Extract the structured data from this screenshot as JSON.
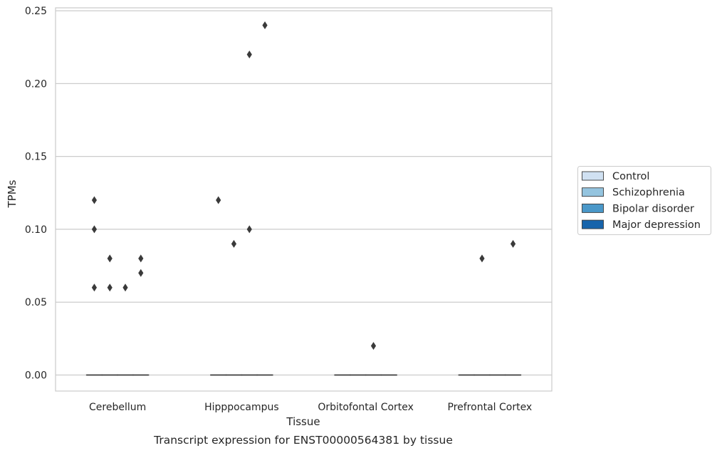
{
  "chart_data": {
    "type": "box",
    "title": "",
    "caption": "Transcript expression for ENST00000564381 by tissue",
    "xlabel": "Tissue",
    "ylabel": "TPMs",
    "ylim": [
      -0.011,
      0.252
    ],
    "yticks": [
      0.0,
      0.05,
      0.1,
      0.15,
      0.2,
      0.25
    ],
    "ytick_labels": [
      "0.00",
      "0.05",
      "0.10",
      "0.15",
      "0.20",
      "0.25"
    ],
    "grid": "horizontal",
    "legend_position": "right",
    "categories": [
      "Cerebellum",
      "Hipppocampus",
      "Orbitofontal Cortex",
      "Prefrontal Cortex"
    ],
    "series": [
      {
        "name": "Control",
        "color": "#d0e1f2",
        "boxes": [
          {
            "category": "Cerebellum",
            "q1": 0,
            "median": 0,
            "q3": 0,
            "whisker_low": 0,
            "whisker_high": 0,
            "outliers": [
              0.06,
              0.1,
              0.12
            ]
          },
          {
            "category": "Hipppocampus",
            "q1": 0,
            "median": 0,
            "q3": 0,
            "whisker_low": 0,
            "whisker_high": 0,
            "outliers": [
              0.12
            ]
          },
          {
            "category": "Orbitofontal Cortex",
            "q1": 0,
            "median": 0,
            "q3": 0,
            "whisker_low": 0,
            "whisker_high": 0,
            "outliers": []
          },
          {
            "category": "Prefrontal Cortex",
            "q1": 0,
            "median": 0,
            "q3": 0,
            "whisker_low": 0,
            "whisker_high": 0,
            "outliers": []
          }
        ]
      },
      {
        "name": "Schizophrenia",
        "color": "#94c4df",
        "boxes": [
          {
            "category": "Cerebellum",
            "q1": 0,
            "median": 0,
            "q3": 0,
            "whisker_low": 0,
            "whisker_high": 0,
            "outliers": [
              0.06,
              0.08
            ]
          },
          {
            "category": "Hipppocampus",
            "q1": 0,
            "median": 0,
            "q3": 0,
            "whisker_low": 0,
            "whisker_high": 0,
            "outliers": [
              0.09
            ]
          },
          {
            "category": "Orbitofontal Cortex",
            "q1": 0,
            "median": 0,
            "q3": 0,
            "whisker_low": 0,
            "whisker_high": 0,
            "outliers": []
          },
          {
            "category": "Prefrontal Cortex",
            "q1": 0,
            "median": 0,
            "q3": 0,
            "whisker_low": 0,
            "whisker_high": 0,
            "outliers": [
              0.08
            ]
          }
        ]
      },
      {
        "name": "Bipolar disorder",
        "color": "#4a98c9",
        "boxes": [
          {
            "category": "Cerebellum",
            "q1": 0,
            "median": 0,
            "q3": 0,
            "whisker_low": 0,
            "whisker_high": 0,
            "outliers": [
              0.06
            ]
          },
          {
            "category": "Hipppocampus",
            "q1": 0,
            "median": 0,
            "q3": 0,
            "whisker_low": 0,
            "whisker_high": 0,
            "outliers": [
              0.1,
              0.22
            ]
          },
          {
            "category": "Orbitofontal Cortex",
            "q1": 0,
            "median": 0,
            "q3": 0,
            "whisker_low": 0,
            "whisker_high": 0,
            "outliers": [
              0.02
            ]
          },
          {
            "category": "Prefrontal Cortex",
            "q1": 0,
            "median": 0,
            "q3": 0,
            "whisker_low": 0,
            "whisker_high": 0,
            "outliers": []
          }
        ]
      },
      {
        "name": "Major depression",
        "color": "#1764ab",
        "boxes": [
          {
            "category": "Cerebellum",
            "q1": 0,
            "median": 0,
            "q3": 0,
            "whisker_low": 0,
            "whisker_high": 0,
            "outliers": [
              0.07,
              0.08
            ]
          },
          {
            "category": "Hipppocampus",
            "q1": 0,
            "median": 0,
            "q3": 0,
            "whisker_low": 0,
            "whisker_high": 0,
            "outliers": [
              0.24
            ]
          },
          {
            "category": "Orbitofontal Cortex",
            "q1": 0,
            "median": 0,
            "q3": 0,
            "whisker_low": 0,
            "whisker_high": 0,
            "outliers": []
          },
          {
            "category": "Prefrontal Cortex",
            "q1": 0,
            "median": 0,
            "q3": 0,
            "whisker_low": 0,
            "whisker_high": 0,
            "outliers": [
              0.09
            ]
          }
        ]
      }
    ]
  },
  "colors": {
    "grid": "#cccccc",
    "frame": "#cccccc",
    "mark": "#3a3a3a",
    "text": "#262626"
  }
}
